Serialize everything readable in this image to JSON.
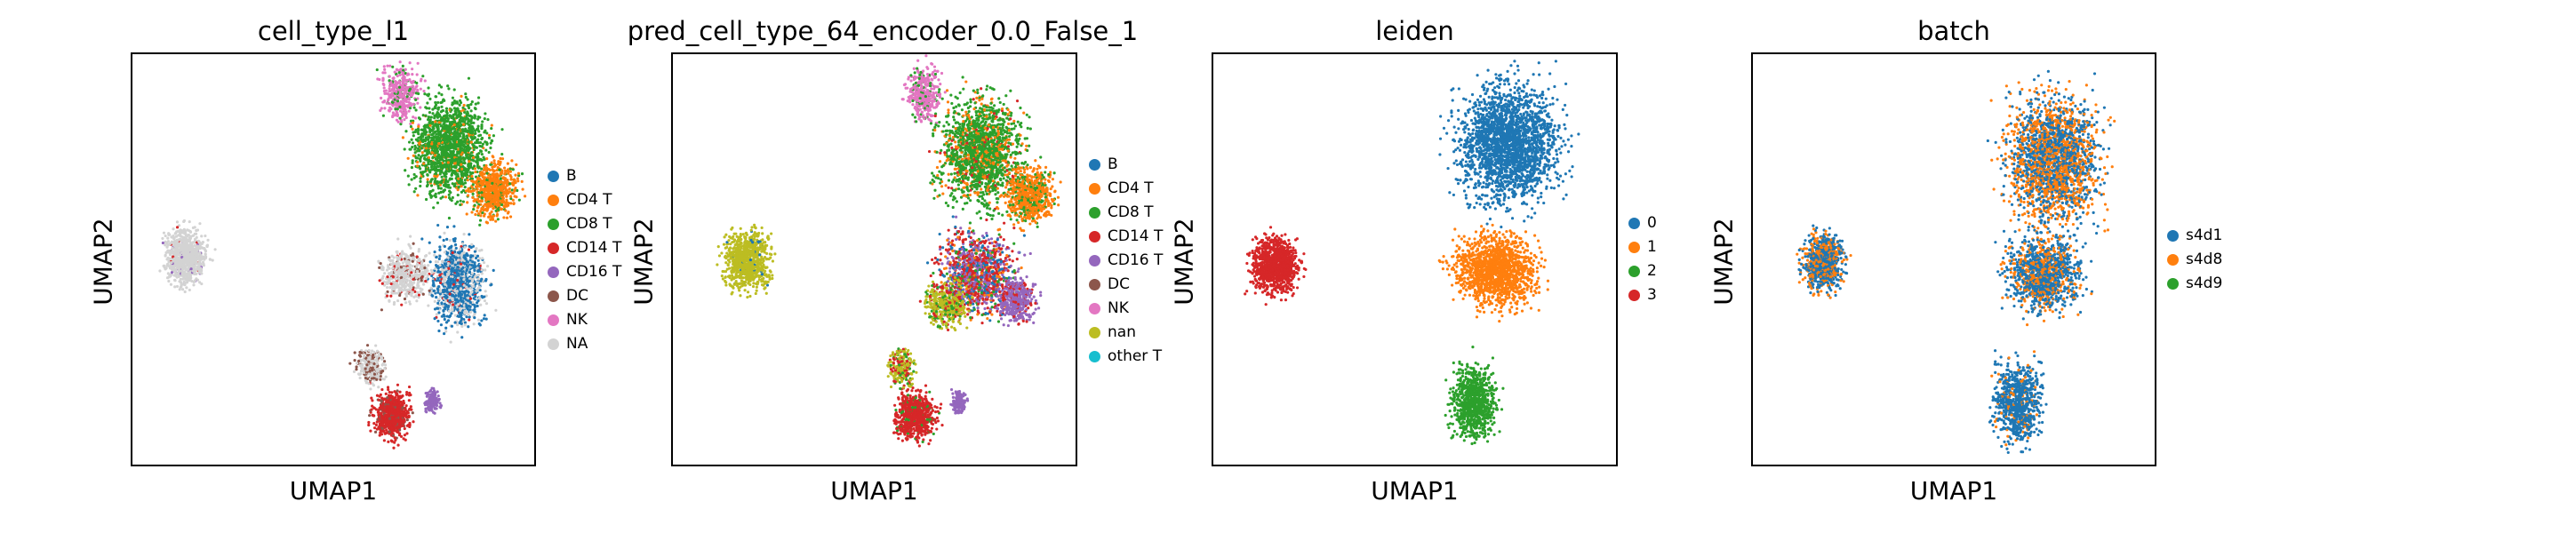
{
  "chart_data": [
    {
      "type": "scatter",
      "title": "cell_type_l1",
      "xlabel": "UMAP1",
      "ylabel": "UMAP2",
      "grid": false,
      "legend_position": "right",
      "legend": [
        {
          "label": "B",
          "color": "#1f77b4"
        },
        {
          "label": "CD4 T",
          "color": "#ff7f0e"
        },
        {
          "label": "CD8 T",
          "color": "#2ca02c"
        },
        {
          "label": "CD14 T",
          "color": "#d62728"
        },
        {
          "label": "CD16 T",
          "color": "#9467bd"
        },
        {
          "label": "DC",
          "color": "#8c564b"
        },
        {
          "label": "NK",
          "color": "#e377c2"
        },
        {
          "label": "NA",
          "color": "#d3d3d3"
        }
      ]
    },
    {
      "type": "scatter",
      "title": "pred_cell_type_64_encoder_0.0_False_1",
      "xlabel": "UMAP1",
      "ylabel": "UMAP2",
      "grid": false,
      "legend_position": "right",
      "legend": [
        {
          "label": "B",
          "color": "#1f77b4"
        },
        {
          "label": "CD4 T",
          "color": "#ff7f0e"
        },
        {
          "label": "CD8 T",
          "color": "#2ca02c"
        },
        {
          "label": "CD14 T",
          "color": "#d62728"
        },
        {
          "label": "CD16 T",
          "color": "#9467bd"
        },
        {
          "label": "DC",
          "color": "#8c564b"
        },
        {
          "label": "NK",
          "color": "#e377c2"
        },
        {
          "label": "nan",
          "color": "#bcbd22"
        },
        {
          "label": "other T",
          "color": "#17becf"
        }
      ]
    },
    {
      "type": "scatter",
      "title": "leiden",
      "xlabel": "UMAP1",
      "ylabel": "UMAP2",
      "grid": false,
      "legend_position": "right",
      "legend": [
        {
          "label": "0",
          "color": "#1f77b4"
        },
        {
          "label": "1",
          "color": "#ff7f0e"
        },
        {
          "label": "2",
          "color": "#2ca02c"
        },
        {
          "label": "3",
          "color": "#d62728"
        }
      ]
    },
    {
      "type": "scatter",
      "title": "batch",
      "xlabel": "UMAP1",
      "ylabel": "UMAP2",
      "grid": false,
      "legend_position": "right",
      "legend": [
        {
          "label": "s4d1",
          "color": "#1f77b4"
        },
        {
          "label": "s4d8",
          "color": "#ff7f0e"
        },
        {
          "label": "s4d9",
          "color": "#2ca02c"
        }
      ]
    }
  ]
}
